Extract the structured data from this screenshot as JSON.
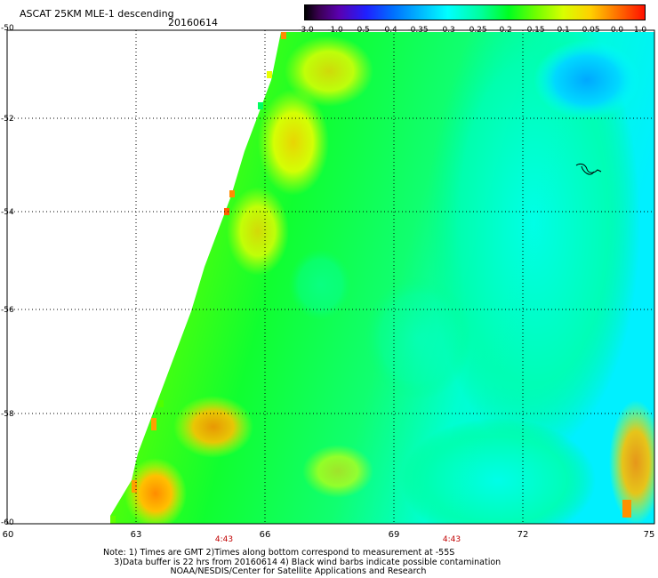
{
  "header": {
    "title": "ASCAT 25KM MLE-1 descending",
    "date": "20160614"
  },
  "colorbar": {
    "labels": [
      "-3.0",
      "-1.0",
      "-0.5",
      "-0.4",
      "-0.35",
      "-0.3",
      "-0.25",
      "-0.2",
      "-0.15",
      "-0.1",
      "-0.05",
      "0.0",
      "1.0"
    ]
  },
  "axes": {
    "lat_labels": [
      "-50",
      "-52",
      "-54",
      "-56",
      "-58",
      "-60"
    ],
    "lon_labels": [
      "60",
      "63",
      "66",
      "69",
      "72",
      "75"
    ],
    "time_labels": [
      "4:43",
      "4:43"
    ]
  },
  "note": {
    "line1": "Note: 1) Times are GMT 2)Times along bottom correspond to measurement at -55S",
    "line2": "3)Data buffer is 22 hrs from 20160614 4) Black wind barbs indicate possible contamination",
    "line3": "NOAA/NESDIS/Center for Satellite Applications and Research"
  },
  "colors": {
    "high": "#ff8a00",
    "mid_high": "#d8ff00",
    "mid": "#20ff20",
    "low": "#00ffd0",
    "very_low": "#00b8ff"
  }
}
